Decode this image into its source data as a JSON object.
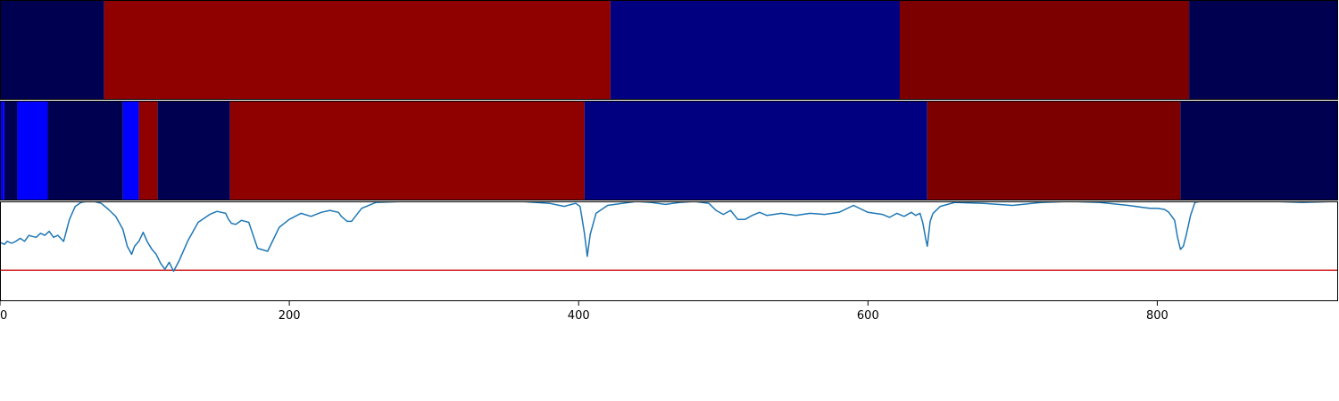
{
  "chart_data": {
    "type": "segmentation-timeline",
    "xlim": [
      0,
      925
    ],
    "x_ticks": [
      0,
      200,
      400,
      600,
      800
    ],
    "x_tick_labels": [
      "0",
      "200",
      "400",
      "600",
      "800"
    ],
    "tracks": [
      {
        "segments": [
          {
            "start": 0,
            "end": 72,
            "color": "#000050"
          },
          {
            "start": 72,
            "end": 422,
            "color": "#8f0000"
          },
          {
            "start": 422,
            "end": 622,
            "color": "#000080"
          },
          {
            "start": 622,
            "end": 822,
            "color": "#7d0000"
          },
          {
            "start": 822,
            "end": 925,
            "color": "#000050"
          }
        ]
      },
      {
        "segments": [
          {
            "start": 0,
            "end": 3,
            "color": "#0000ff"
          },
          {
            "start": 3,
            "end": 12,
            "color": "#000050"
          },
          {
            "start": 12,
            "end": 33,
            "color": "#0000ff"
          },
          {
            "start": 33,
            "end": 85,
            "color": "#000050"
          },
          {
            "start": 85,
            "end": 96,
            "color": "#0000ff"
          },
          {
            "start": 96,
            "end": 109,
            "color": "#8f0000"
          },
          {
            "start": 109,
            "end": 159,
            "color": "#000050"
          },
          {
            "start": 159,
            "end": 404,
            "color": "#8f0000"
          },
          {
            "start": 404,
            "end": 641,
            "color": "#000080"
          },
          {
            "start": 641,
            "end": 816,
            "color": "#7d0000"
          },
          {
            "start": 816,
            "end": 925,
            "color": "#000050"
          }
        ]
      }
    ],
    "line_panel": {
      "ylim": [
        0,
        1
      ],
      "line_color": "#1f77b4",
      "threshold": 0.31,
      "threshold_color": "#d62728",
      "x": [
        0,
        3,
        5,
        8,
        11,
        14,
        17,
        20,
        22,
        25,
        28,
        31,
        34,
        37,
        40,
        44,
        48,
        52,
        56,
        60,
        65,
        70,
        75,
        80,
        85,
        88,
        91,
        93,
        96,
        99,
        102,
        105,
        108,
        111,
        114,
        117,
        120,
        124,
        130,
        137,
        145,
        150,
        156,
        158,
        160,
        163,
        167,
        172,
        178,
        185,
        193,
        200,
        208,
        215,
        222,
        228,
        234,
        236,
        240,
        243,
        250,
        260,
        280,
        300,
        320,
        340,
        360,
        380,
        390,
        395,
        398,
        401,
        402,
        404,
        406,
        408,
        412,
        420,
        430,
        440,
        450,
        460,
        470,
        480,
        490,
        495,
        500,
        505,
        510,
        515,
        520,
        525,
        530,
        535,
        540,
        550,
        560,
        570,
        580,
        590,
        600,
        610,
        615,
        620,
        625,
        630,
        633,
        636,
        638,
        640,
        641,
        643,
        645,
        650,
        660,
        680,
        700,
        720,
        740,
        760,
        780,
        790,
        795,
        800,
        805,
        808,
        812,
        814,
        816,
        818,
        820,
        823,
        826,
        830,
        840,
        860,
        880,
        900,
        925
      ],
      "y": [
        0.59,
        0.57,
        0.6,
        0.58,
        0.6,
        0.63,
        0.6,
        0.66,
        0.65,
        0.64,
        0.68,
        0.66,
        0.7,
        0.64,
        0.66,
        0.6,
        0.82,
        0.95,
        0.99,
        1.0,
        1.0,
        0.98,
        0.92,
        0.85,
        0.72,
        0.55,
        0.47,
        0.55,
        0.6,
        0.69,
        0.59,
        0.52,
        0.47,
        0.38,
        0.32,
        0.39,
        0.3,
        0.41,
        0.61,
        0.79,
        0.87,
        0.9,
        0.88,
        0.82,
        0.78,
        0.77,
        0.81,
        0.79,
        0.53,
        0.5,
        0.74,
        0.82,
        0.88,
        0.85,
        0.89,
        0.91,
        0.89,
        0.85,
        0.8,
        0.8,
        0.93,
        0.99,
        1.0,
        1.0,
        1.0,
        1.0,
        1.0,
        0.98,
        0.95,
        0.97,
        0.98,
        0.95,
        0.86,
        0.68,
        0.45,
        0.67,
        0.88,
        0.96,
        0.98,
        1.0,
        0.99,
        0.97,
        0.99,
        1.0,
        0.98,
        0.91,
        0.87,
        0.91,
        0.82,
        0.82,
        0.86,
        0.89,
        0.86,
        0.87,
        0.88,
        0.86,
        0.88,
        0.87,
        0.89,
        0.96,
        0.89,
        0.87,
        0.84,
        0.88,
        0.85,
        0.89,
        0.86,
        0.88,
        0.78,
        0.62,
        0.55,
        0.8,
        0.88,
        0.95,
        0.99,
        0.98,
        0.96,
        0.99,
        1.0,
        0.99,
        0.96,
        0.94,
        0.93,
        0.93,
        0.92,
        0.89,
        0.81,
        0.64,
        0.52,
        0.55,
        0.66,
        0.86,
        0.99,
        1.0,
        1.0,
        1.0,
        1.0,
        0.99,
        1.0
      ]
    }
  }
}
